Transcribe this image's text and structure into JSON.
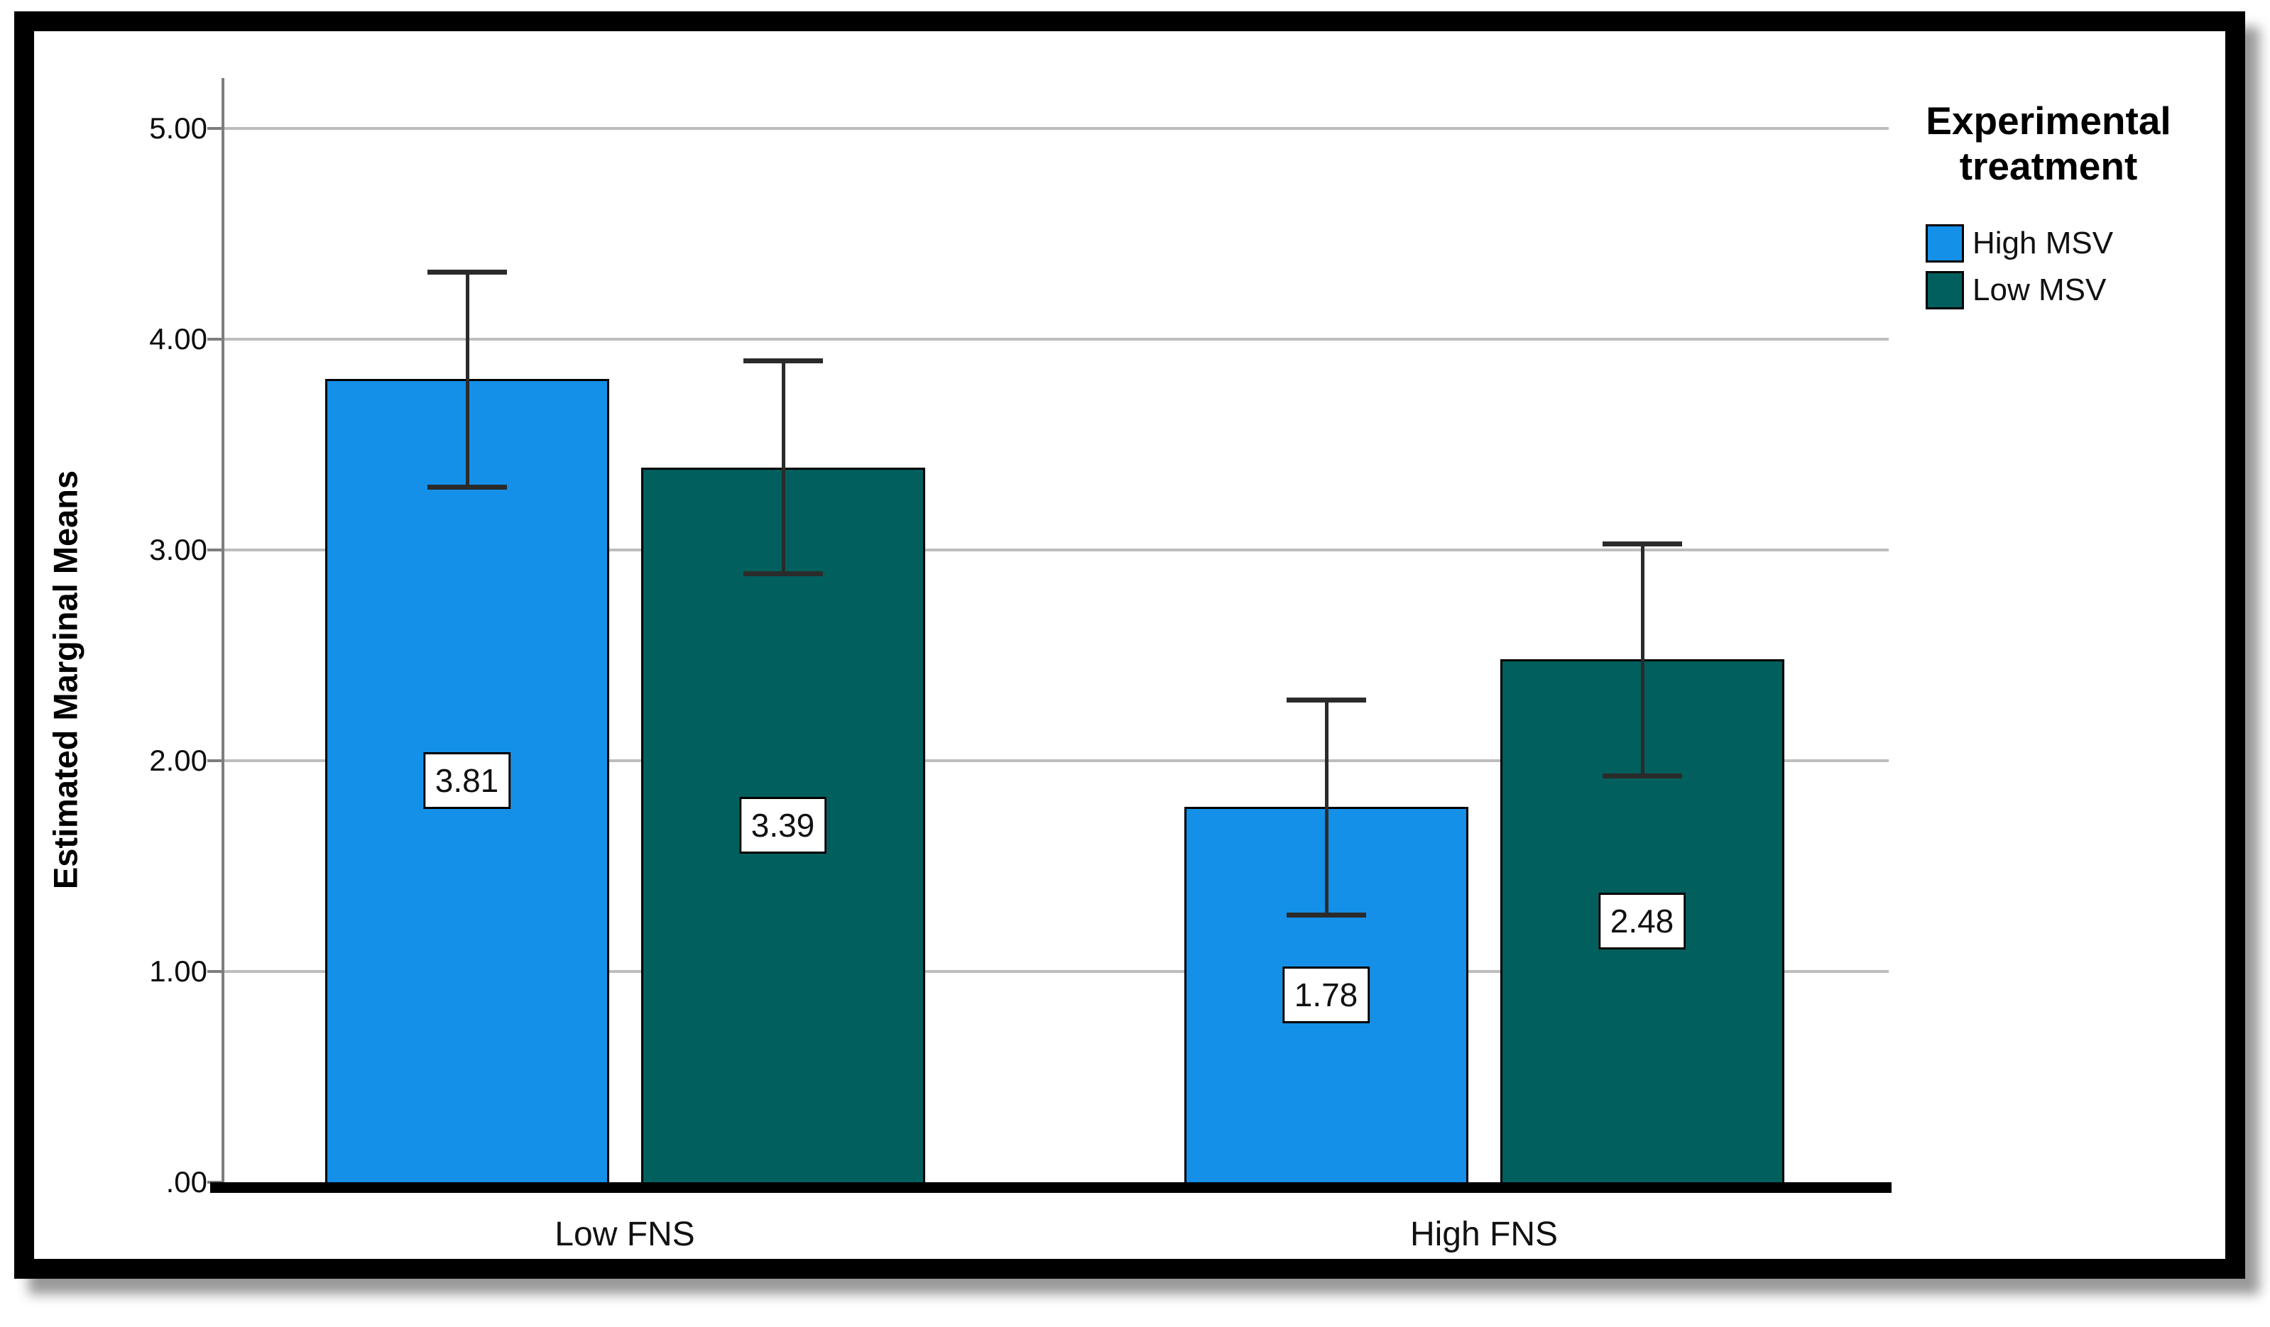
{
  "chart_data": {
    "type": "bar",
    "title": "",
    "ylabel": "Estimated Marginal Means",
    "xlabel": "",
    "categories": [
      "Low FNS",
      "High FNS"
    ],
    "series": [
      {
        "name": "High MSV",
        "color": "#1490E8",
        "values": [
          3.81,
          1.78
        ],
        "ci_low": [
          3.3,
          1.27
        ],
        "ci_high": [
          4.32,
          2.29
        ]
      },
      {
        "name": "Low MSV",
        "color": "#015F5E",
        "values": [
          3.39,
          2.48
        ],
        "ci_low": [
          2.89,
          1.93
        ],
        "ci_high": [
          3.9,
          3.03
        ]
      }
    ],
    "value_labels": [
      "3.81",
      "3.39",
      "1.78",
      "2.48"
    ],
    "y_ticks": [
      {
        "value": 0,
        "label": ".00"
      },
      {
        "value": 1,
        "label": "1.00"
      },
      {
        "value": 2,
        "label": "2.00"
      },
      {
        "value": 3,
        "label": "3.00"
      },
      {
        "value": 4,
        "label": "4.00"
      },
      {
        "value": 5,
        "label": "5.00"
      }
    ],
    "ylim": [
      0,
      5.24
    ],
    "grid": true,
    "error_bars": true,
    "legend": {
      "title": "Experimental treatment",
      "title_lines": [
        "Experimental",
        "treatment"
      ],
      "position": "top-right",
      "entries": [
        {
          "label": "High MSV",
          "color": "#1490E8"
        },
        {
          "label": "Low MSV",
          "color": "#015F5E"
        }
      ]
    },
    "colors": {
      "bar_border": "#000000",
      "grid_line": "#bdbdbd",
      "axis_line": "#7e7e7e",
      "baseline": "#000000",
      "error_bar": "#2b2b2b",
      "value_label_bg": "#ffffff",
      "value_label_border": "#000000",
      "frame": "#000000",
      "background": "#ffffff"
    }
  }
}
